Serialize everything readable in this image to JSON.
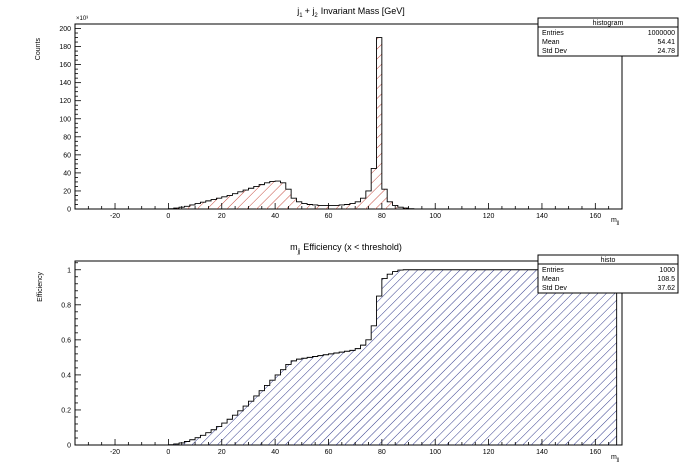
{
  "chart_data": [
    {
      "type": "histogram",
      "title_parts": {
        "j1_main": "j",
        "j1_sub": "1",
        "plus": "+ j",
        "j2_sub": "2",
        "rest": "Invariant Mass [GeV]"
      },
      "ylabel": "Counts",
      "exponent_label": "×10³",
      "xlabel_main": "m",
      "xlabel_sub": "jj",
      "xlim": [
        -35,
        170
      ],
      "ylim": [
        0,
        205
      ],
      "x_ticks": [
        -20,
        0,
        20,
        40,
        60,
        80,
        100,
        120,
        140,
        160
      ],
      "x_tick_labels": [
        "-20",
        "0",
        "20",
        "40",
        "60",
        "80",
        "100",
        "120",
        "140",
        "160"
      ],
      "y_ticks": [
        0,
        20,
        40,
        60,
        80,
        100,
        120,
        140,
        160,
        180,
        200
      ],
      "y_tick_labels": [
        "0",
        "20",
        "40",
        "60",
        "80",
        "100",
        "120",
        "140",
        "160",
        "180",
        "200"
      ],
      "fill_color": "#c0392b",
      "hatch": "diagonal-right",
      "bin_width": 2,
      "bin_low_edges": [
        0,
        2,
        4,
        6,
        8,
        10,
        12,
        14,
        16,
        18,
        20,
        22,
        24,
        26,
        28,
        30,
        32,
        34,
        36,
        38,
        40,
        42,
        44,
        46,
        48,
        50,
        52,
        54,
        56,
        58,
        60,
        62,
        64,
        66,
        68,
        70,
        72,
        74,
        76,
        78,
        80,
        82,
        84,
        86,
        88,
        90
      ],
      "values": [
        0.3,
        1,
        2,
        3,
        4.5,
        6,
        7.5,
        9,
        10.5,
        12,
        13.5,
        15,
        17,
        19,
        21,
        23,
        25,
        27,
        29,
        30.5,
        31,
        29,
        22,
        12,
        8,
        6,
        5,
        4.5,
        4,
        4,
        4,
        4,
        4.5,
        5,
        6,
        8,
        12,
        20,
        45,
        190,
        22,
        8,
        4,
        2,
        1,
        0.3
      ],
      "stats": {
        "name": "histogram",
        "rows": [
          {
            "label": "Entries",
            "value": "1000000"
          },
          {
            "label": "Mean",
            "value": "54.41"
          },
          {
            "label": "Std Dev",
            "value": "24.78"
          }
        ]
      }
    },
    {
      "type": "histogram",
      "title_parts": {
        "m_main": "m",
        "m_sub": "jj",
        "rest": "Efficiency (x < threshold)"
      },
      "ylabel": "Efficiency",
      "xlabel_main": "m",
      "xlabel_sub": "jj",
      "xlim": [
        -35,
        170
      ],
      "ylim": [
        0,
        1.05
      ],
      "x_ticks": [
        -20,
        0,
        20,
        40,
        60,
        80,
        100,
        120,
        140,
        160
      ],
      "x_tick_labels": [
        "-20",
        "0",
        "20",
        "40",
        "60",
        "80",
        "100",
        "120",
        "140",
        "160"
      ],
      "y_ticks": [
        0,
        0.2,
        0.4,
        0.6,
        0.8,
        1
      ],
      "y_tick_labels": [
        "0",
        "0.2",
        "0.4",
        "0.6",
        "0.8",
        "1"
      ],
      "fill_color": "#1a237e",
      "hatch": "diagonal-right",
      "bin_width": 2,
      "bin_low_edges": [
        0,
        2,
        4,
        6,
        8,
        10,
        12,
        14,
        16,
        18,
        20,
        22,
        24,
        26,
        28,
        30,
        32,
        34,
        36,
        38,
        40,
        42,
        44,
        46,
        48,
        50,
        52,
        54,
        56,
        58,
        60,
        62,
        64,
        66,
        68,
        70,
        72,
        74,
        76,
        78,
        80,
        82,
        84,
        86,
        88,
        90,
        92,
        94,
        96,
        98,
        100,
        102,
        104,
        106,
        108,
        110,
        112,
        114,
        116,
        118,
        120,
        122,
        124,
        126,
        128,
        130,
        132,
        134,
        136,
        138,
        140,
        142,
        144,
        146,
        148,
        150,
        152,
        154,
        156,
        158,
        160,
        162,
        164,
        166
      ],
      "values": [
        0.002,
        0.006,
        0.012,
        0.02,
        0.03,
        0.042,
        0.055,
        0.07,
        0.087,
        0.105,
        0.125,
        0.147,
        0.17,
        0.195,
        0.222,
        0.25,
        0.28,
        0.31,
        0.34,
        0.37,
        0.4,
        0.43,
        0.46,
        0.48,
        0.49,
        0.495,
        0.5,
        0.505,
        0.51,
        0.515,
        0.52,
        0.525,
        0.53,
        0.535,
        0.54,
        0.55,
        0.57,
        0.6,
        0.68,
        0.85,
        0.95,
        0.975,
        0.99,
        0.998,
        1,
        1,
        1,
        1,
        1,
        1,
        1,
        1,
        1,
        1,
        1,
        1,
        1,
        1,
        1,
        1,
        1,
        1,
        1,
        1,
        1,
        1,
        1,
        1,
        1,
        1,
        1,
        1,
        1,
        1,
        1,
        1,
        1,
        1,
        1,
        1,
        1,
        1,
        1,
        1
      ],
      "stats": {
        "name": "histo",
        "rows": [
          {
            "label": "Entries",
            "value": "1000"
          },
          {
            "label": "Mean",
            "value": "108.5"
          },
          {
            "label": "Std Dev",
            "value": "37.62"
          }
        ]
      }
    }
  ]
}
